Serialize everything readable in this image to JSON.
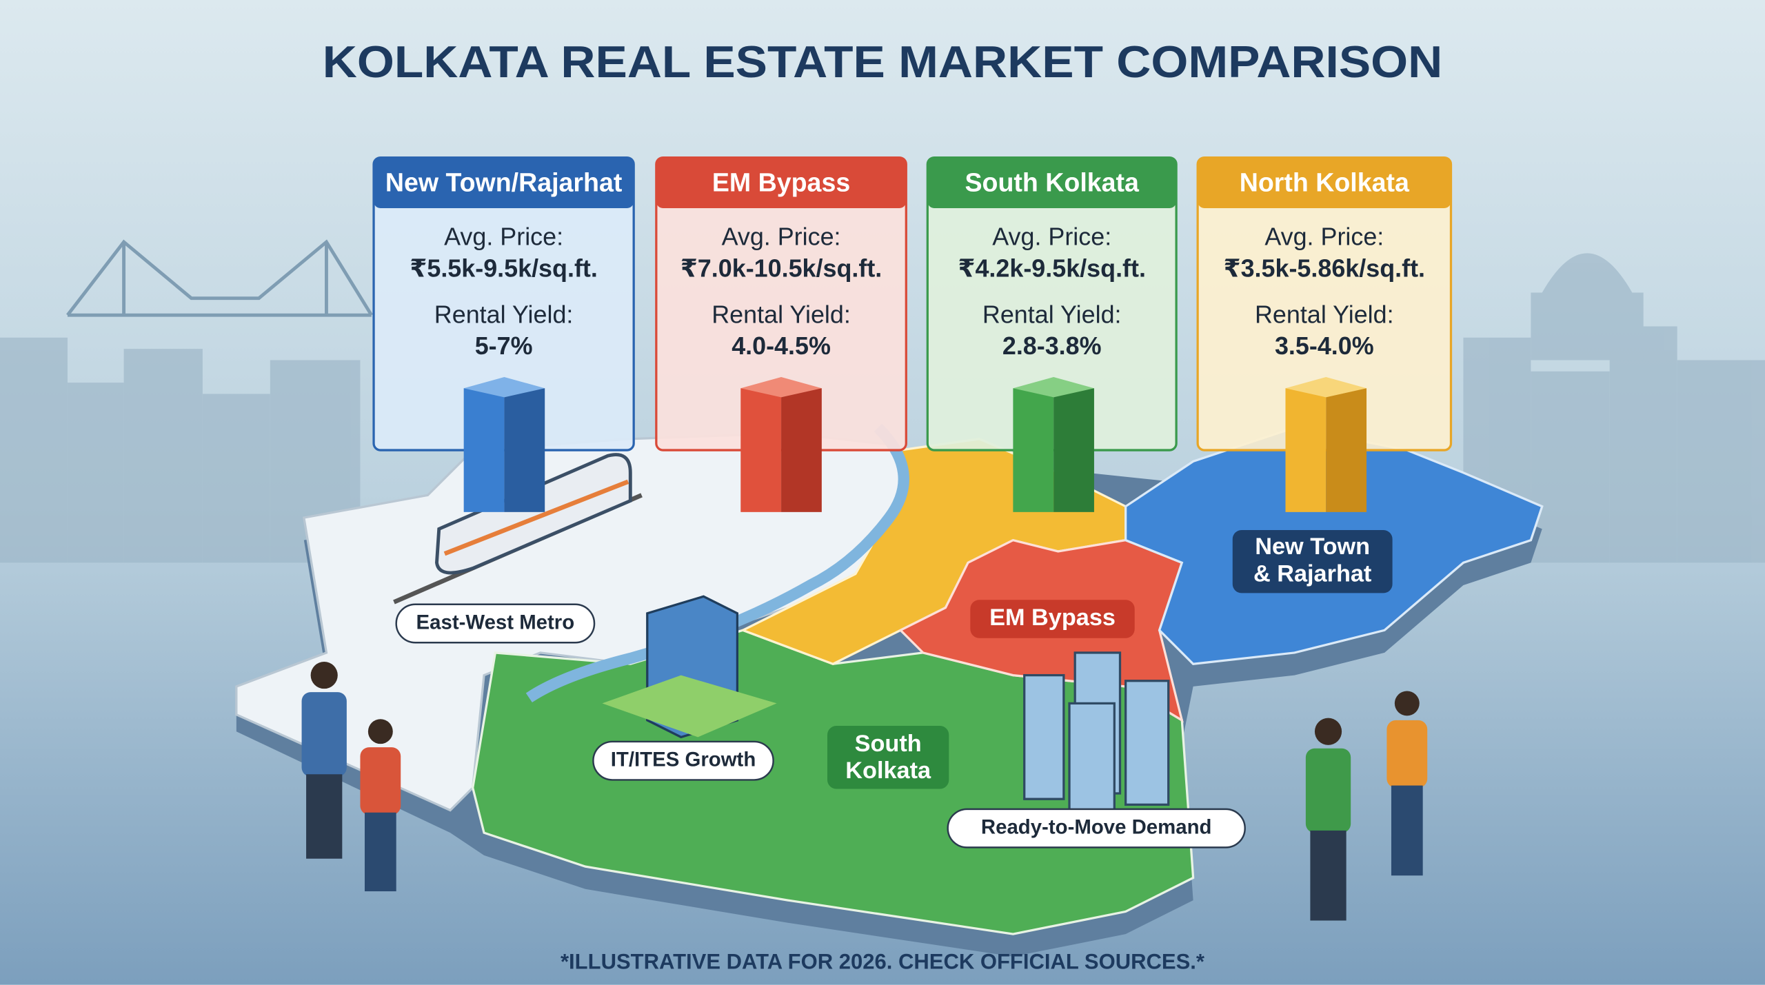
{
  "header": {
    "title": "KOLKATA REAL ESTATE MARKET COMPARISON"
  },
  "cards": [
    {
      "name": "New Town/Rajarhat",
      "price_label": "Avg. Price:",
      "price": "₹5.5k-9.5k/sq.ft.",
      "yield_label": "Rental Yield:",
      "yield": "5-7%"
    },
    {
      "name": "EM Bypass",
      "price_label": "Avg. Price:",
      "price": "₹7.0k-10.5k/sq.ft.",
      "yield_label": "Rental Yield:",
      "yield": "4.0-4.5%"
    },
    {
      "name": "South Kolkata",
      "price_label": "Avg. Price:",
      "price": "₹4.2k-9.5k/sq.ft.",
      "yield_label": "Rental Yield:",
      "yield": "2.8-3.8%"
    },
    {
      "name": "North Kolkata",
      "price_label": "Avg. Price:",
      "price": "₹3.5k-5.86k/sq.ft.",
      "yield_label": "Rental Yield:",
      "yield": "3.5-4.0%"
    }
  ],
  "map_labels": {
    "metro": "East-West Metro",
    "it": "IT/ITES Growth",
    "south": [
      "South",
      "Kolkata"
    ],
    "em": "EM Bypass",
    "new_town": [
      "New Town",
      "& Rajarhat"
    ],
    "ready": "Ready-to-Move Demand"
  },
  "footnote": "*ILLUSTRATIVE DATA FOR 2026. CHECK OFFICIAL SOURCES.*"
}
